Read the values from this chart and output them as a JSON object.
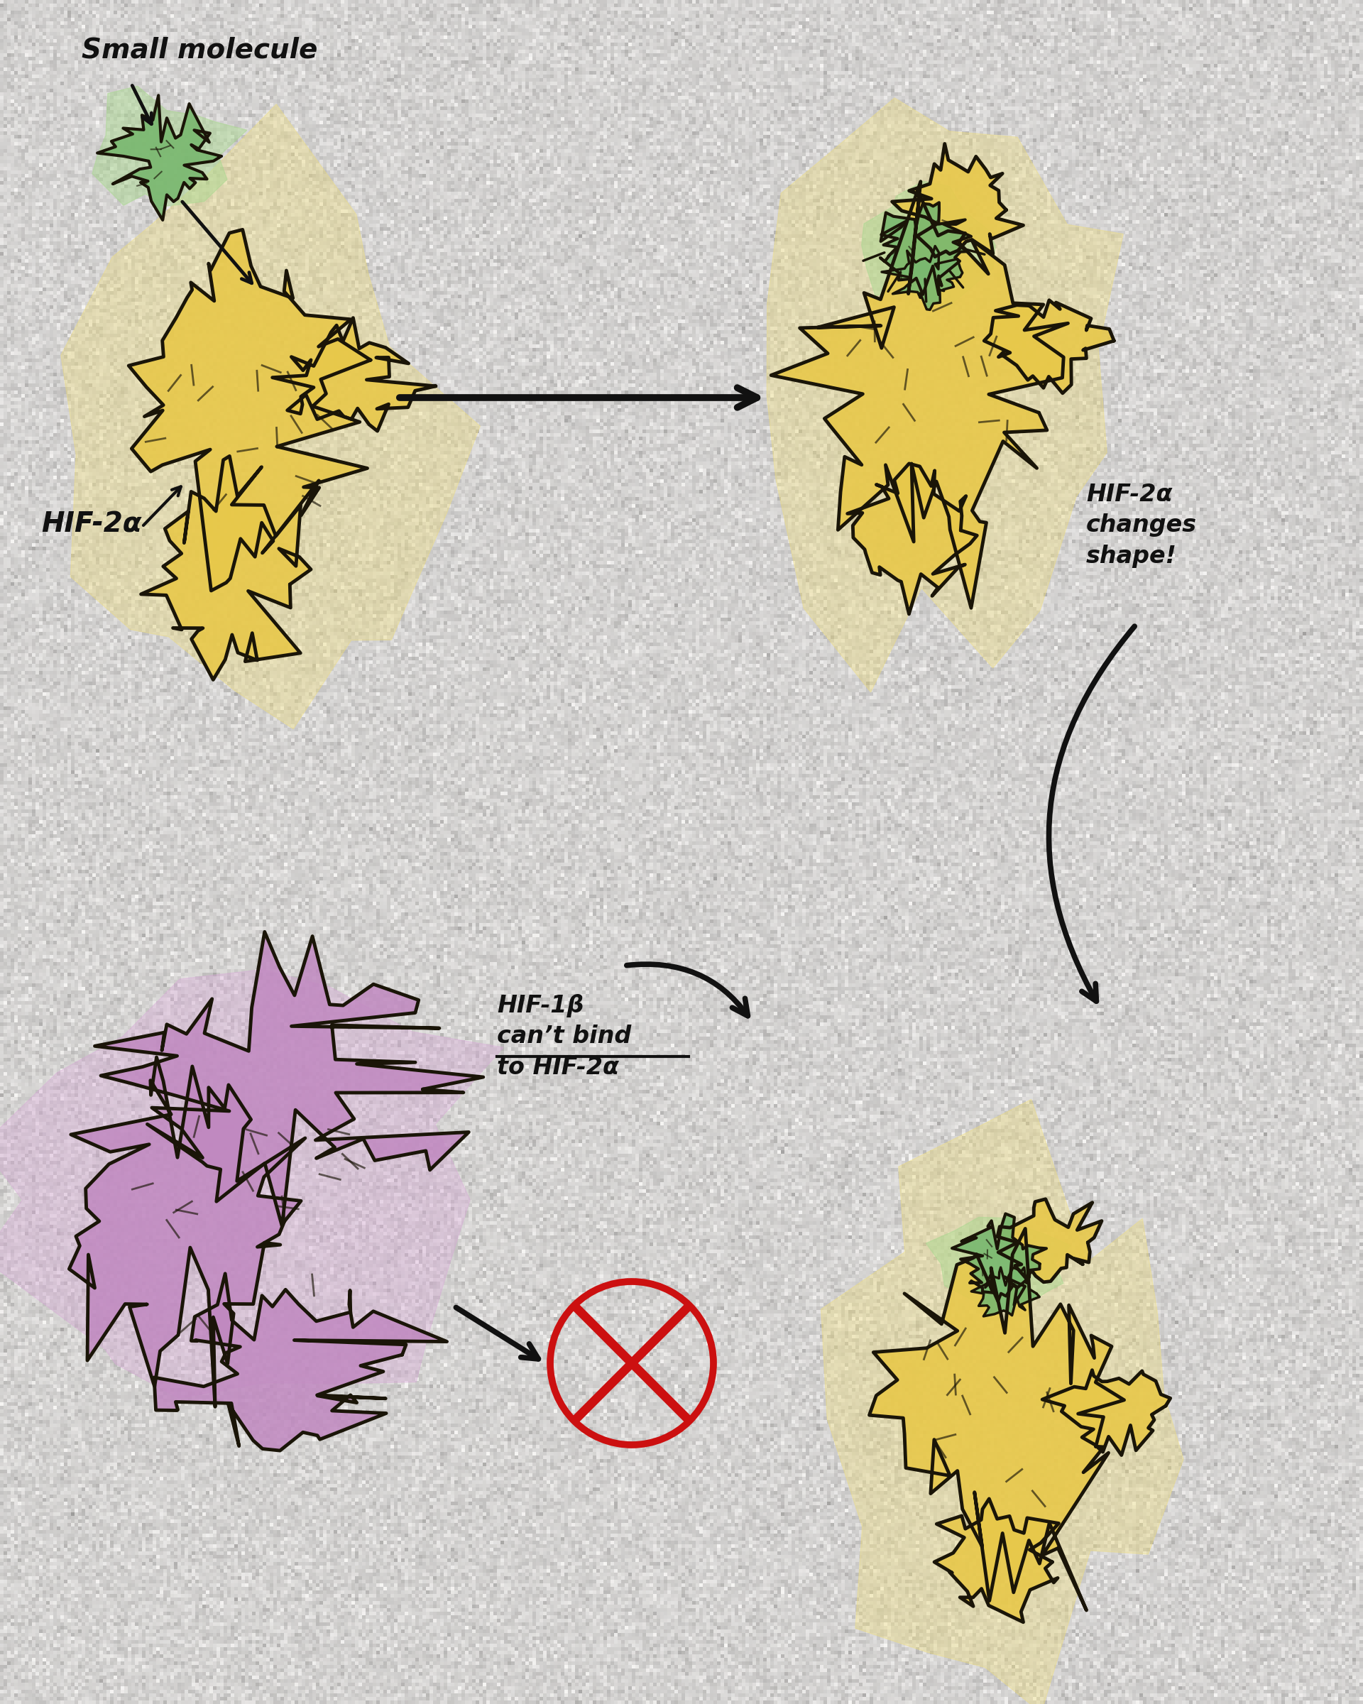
{
  "bg_color": "#f2f0ee",
  "yellow_fill": "#e8c84a",
  "yellow_wash": "#f0de7a",
  "green_fill": "#7ab870",
  "green_wash": "#aad890",
  "purple_fill": "#c088c0",
  "purple_wash": "#d8a8d8",
  "outline_color": "#1a1508",
  "arrow_color": "#111111",
  "no_symbol_color": "#cc1010",
  "text_color": "#111111",
  "label_small_mol": "Small molecule",
  "label_hif2a": "HIF-2α",
  "label_changes": "HIF-2α\nchanges\nshape!",
  "label_cantbind": "HIF-1β\ncan’t bind\nto HIF-2α",
  "font_size_large": 28,
  "font_size_med": 24
}
